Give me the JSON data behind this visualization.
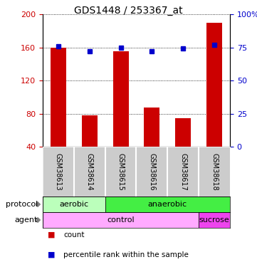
{
  "title": "GDS1448 / 253367_at",
  "samples": [
    "GSM38613",
    "GSM38614",
    "GSM38615",
    "GSM38616",
    "GSM38617",
    "GSM38618"
  ],
  "count_values": [
    160,
    78,
    155,
    87,
    74,
    190
  ],
  "percentile_values": [
    76,
    72,
    75,
    72,
    74,
    77
  ],
  "ylim_left": [
    40,
    200
  ],
  "ylim_right": [
    0,
    100
  ],
  "yticks_left": [
    40,
    80,
    120,
    160,
    200
  ],
  "yticks_right": [
    0,
    25,
    50,
    75,
    100
  ],
  "ytick_labels_right": [
    "0",
    "25",
    "50",
    "75",
    "100%"
  ],
  "bar_color": "#cc0000",
  "dot_color": "#0000cc",
  "protocol_labels": [
    [
      "aerobic",
      0,
      2
    ],
    [
      "anaerobic",
      2,
      6
    ]
  ],
  "protocol_colors": [
    "#bbffbb",
    "#44ee44"
  ],
  "agent_labels": [
    [
      "control",
      0,
      5
    ],
    [
      "sucrose",
      5,
      6
    ]
  ],
  "agent_colors": [
    "#ffaaff",
    "#ee44ee"
  ],
  "sample_box_color": "#cccccc",
  "legend_count_color": "#cc0000",
  "legend_pct_color": "#0000cc",
  "figsize": [
    3.61,
    3.75
  ],
  "dpi": 100
}
